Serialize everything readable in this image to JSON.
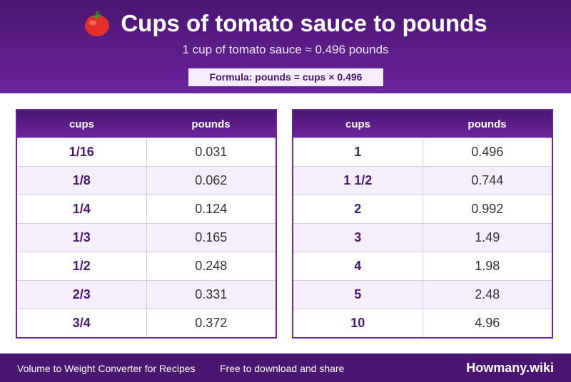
{
  "header": {
    "icon": "tomato-icon",
    "title": "Cups of tomato sauce to pounds",
    "subtitle": "1 cup of tomato sauce ≈ 0.496 pounds",
    "formula": "Formula: pounds = cups × 0.496"
  },
  "table_left": {
    "headers": [
      "cups",
      "pounds"
    ],
    "rows": [
      {
        "cups": "1/16",
        "pounds": "0.031"
      },
      {
        "cups": "1/8",
        "pounds": "0.062"
      },
      {
        "cups": "1/4",
        "pounds": "0.124"
      },
      {
        "cups": "1/3",
        "pounds": "0.165"
      },
      {
        "cups": "1/2",
        "pounds": "0.248"
      },
      {
        "cups": "2/3",
        "pounds": "0.331"
      },
      {
        "cups": "3/4",
        "pounds": "0.372"
      }
    ]
  },
  "table_right": {
    "headers": [
      "cups",
      "pounds"
    ],
    "rows": [
      {
        "cups": "1",
        "pounds": "0.496"
      },
      {
        "cups": "1 1/2",
        "pounds": "0.744"
      },
      {
        "cups": "2",
        "pounds": "0.992"
      },
      {
        "cups": "3",
        "pounds": "1.49"
      },
      {
        "cups": "4",
        "pounds": "1.98"
      },
      {
        "cups": "5",
        "pounds": "2.48"
      },
      {
        "cups": "10",
        "pounds": "4.96"
      }
    ]
  },
  "footer": {
    "left_text": "Volume to Weight Converter for Recipes",
    "middle_text": "Free to download and share",
    "brand": "Howmany.wiki"
  },
  "colors": {
    "accent": "#6a249c",
    "accent_dark": "#4b1672",
    "row_alt": "#f4effa",
    "tomato": "#e0302a"
  }
}
